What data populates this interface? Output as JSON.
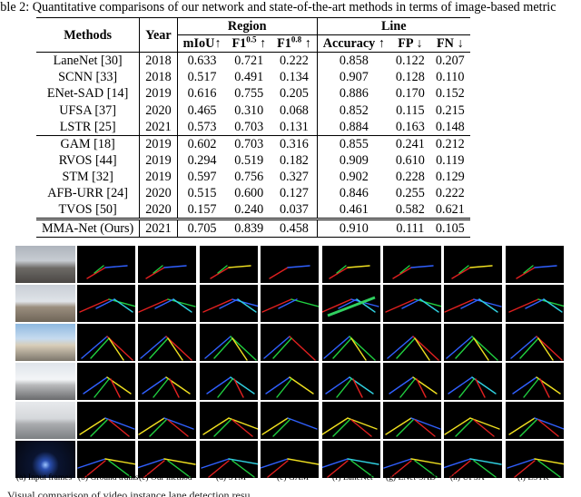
{
  "table_caption": "able 2: Quantitative comparisons of our network and state-of-the-art methods in terms of image-based metric",
  "headers": {
    "methods": "Methods",
    "year": "Year",
    "region": "Region",
    "line": "Line",
    "miou": "mIoU↑",
    "f1_05": "F1",
    "f1_05_sup": "0.5",
    "f1_05_arrow": " ↑",
    "f1_08": "F1",
    "f1_08_sup": "0.8",
    "f1_08_arrow": " ↑",
    "accuracy": "Accuracy ↑",
    "fp": "FP ↓",
    "fn": "FN ↓"
  },
  "rows_group1": [
    {
      "method": "LaneNet [30]",
      "year": "2018",
      "miou": "0.633",
      "f105": "0.721",
      "f108": "0.222",
      "acc": "0.858",
      "fp": "0.122",
      "fn": "0.207"
    },
    {
      "method": "SCNN [33]",
      "year": "2018",
      "miou": "0.517",
      "f105": "0.491",
      "f108": "0.134",
      "acc": "0.907",
      "fp": "0.128",
      "fn": "0.110"
    },
    {
      "method": "ENet-SAD [14]",
      "year": "2019",
      "miou": "0.616",
      "f105": "0.755",
      "f108": "0.205",
      "acc": "0.886",
      "fp": "0.170",
      "fn": "0.152"
    },
    {
      "method": "UFSA [37]",
      "year": "2020",
      "miou": "0.465",
      "f105": "0.310",
      "f108": "0.068",
      "acc": "0.852",
      "fp": "0.115",
      "fn": "0.215"
    },
    {
      "method": "LSTR [25]",
      "year": "2021",
      "miou": "0.573",
      "f105": "0.703",
      "f108": "0.131",
      "acc": "0.884",
      "fp": "0.163",
      "fn": "0.148"
    }
  ],
  "rows_group2": [
    {
      "method": "GAM [18]",
      "year": "2019",
      "miou": "0.602",
      "f105": "0.703",
      "f108": "0.316",
      "acc": "0.855",
      "fp": "0.241",
      "fn": "0.212"
    },
    {
      "method": "RVOS [44]",
      "year": "2019",
      "miou": "0.294",
      "f105": "0.519",
      "f108": "0.182",
      "acc": "0.909",
      "fp": "0.610",
      "fn": "0.119"
    },
    {
      "method": "STM [32]",
      "year": "2019",
      "miou": "0.597",
      "f105": "0.756",
      "f108": "0.327",
      "acc": "0.902",
      "fp": "0.228",
      "fn": "0.129"
    },
    {
      "method": "AFB-URR [24]",
      "year": "2020",
      "miou": "0.515",
      "f105": "0.600",
      "f108": "0.127",
      "acc": "0.846",
      "fp": "0.255",
      "fn": "0.222"
    },
    {
      "method": "TVOS [50]",
      "year": "2020",
      "miou": "0.157",
      "f105": "0.240",
      "f108": "0.037",
      "acc": "0.461",
      "fp": "0.582",
      "fn": "0.621"
    }
  ],
  "row_ours": {
    "method": "MMA-Net (Ours)",
    "year": "2021",
    "miou": "0.705",
    "f105": "0.839",
    "f108": "0.458",
    "acc": "0.910",
    "fp": "0.111",
    "fn": "0.105"
  },
  "figure_labels": [
    "(a) Input frames",
    "(b) Ground truths",
    "(c) Our method",
    "(d) STM",
    "(e) GAM",
    "(f) LaneNet",
    "(g) ENet-SAD",
    "(h) UFSA",
    "(i) LSTR"
  ],
  "bottom_caption": "Visual comparison of video instance lane detection resu        ......",
  "lane_colors": [
    "#e02020",
    "#20d040",
    "#3060ff",
    "#f0e020",
    "#30d0e0"
  ]
}
